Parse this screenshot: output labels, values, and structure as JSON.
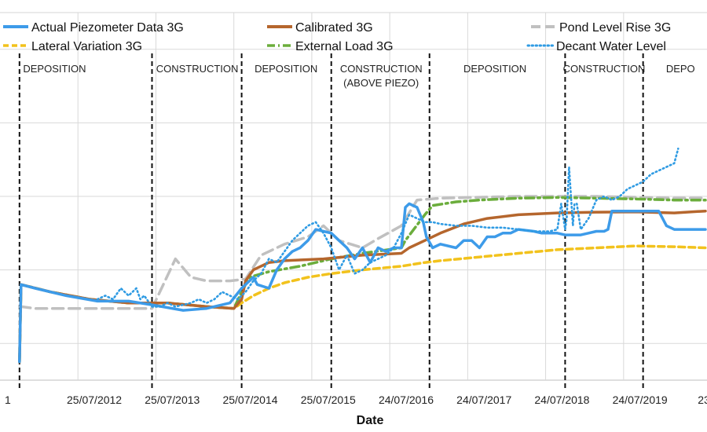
{
  "chart_data": {
    "type": "line",
    "title": "",
    "xlabel": "Date",
    "ylabel": "",
    "x_range": [
      2011.35,
      2020.42
    ],
    "y_range": [
      0,
      100
    ],
    "x_tick_labels": [
      {
        "label": "1",
        "x": 2011.45
      },
      {
        "label": "25/07/2012",
        "x": 2012.56
      },
      {
        "label": "25/07/2013",
        "x": 2013.56
      },
      {
        "label": "25/07/2014",
        "x": 2014.56
      },
      {
        "label": "25/07/2015",
        "x": 2015.56
      },
      {
        "label": "24/07/2016",
        "x": 2016.56
      },
      {
        "label": "24/07/2017",
        "x": 2017.56
      },
      {
        "label": "24/07/2018",
        "x": 2018.56
      },
      {
        "label": "24/07/2019",
        "x": 2019.56
      },
      {
        "label": "23/",
        "x": 2020.4
      }
    ],
    "x_gridlines": [
      2012.35,
      2013.35,
      2014.35,
      2015.35,
      2016.35,
      2017.35,
      2018.35,
      2019.35
    ],
    "y_gridlines": [
      10,
      30,
      50,
      70,
      90
    ],
    "phase_boundaries": [
      2011.6,
      2013.3,
      2014.45,
      2015.6,
      2016.86,
      2018.6,
      2019.6
    ],
    "phases": [
      {
        "label": "DEPOSITION",
        "x": 2012.05
      },
      {
        "label": "CONSTRUCTION",
        "x": 2013.88
      },
      {
        "label": "DEPOSITION",
        "x": 2015.02
      },
      {
        "label": "CONSTRUCTION",
        "sublabel": "(ABOVE PIEZO)",
        "x": 2016.24
      },
      {
        "label": "DEPOSITION",
        "x": 2017.7
      },
      {
        "label": "CONSTRUCTION",
        "x": 2019.1
      },
      {
        "label": "DEPO",
        "x": 2020.08
      }
    ],
    "series": [
      {
        "name": "Actual Piezometer Data 3G",
        "color": "#3d9be9",
        "style": "solid",
        "x": [
          2011.6,
          2011.62,
          2011.8,
          2012.2,
          2012.6,
          2013.0,
          2013.3,
          2013.7,
          2014.0,
          2014.3,
          2014.45,
          2014.6,
          2014.65,
          2014.8,
          2014.9,
          2015.0,
          2015.1,
          2015.2,
          2015.3,
          2015.4,
          2015.5,
          2015.6,
          2015.7,
          2015.8,
          2015.9,
          2016.0,
          2016.1,
          2016.2,
          2016.3,
          2016.4,
          2016.5,
          2016.55,
          2016.6,
          2016.7,
          2016.78,
          2016.82,
          2016.9,
          2017.0,
          2017.2,
          2017.3,
          2017.4,
          2017.5,
          2017.6,
          2017.7,
          2017.8,
          2017.9,
          2018.0,
          2018.2,
          2018.3,
          2018.5,
          2018.6,
          2018.7,
          2018.8,
          2018.9,
          2019.0,
          2019.1,
          2019.15,
          2019.2,
          2019.5,
          2019.75,
          2019.8,
          2019.9,
          2020.0,
          2020.1,
          2020.4
        ],
        "y": [
          5,
          26,
          25,
          23,
          21.5,
          21.5,
          20.5,
          19,
          19.5,
          21,
          25,
          28,
          26,
          25,
          30,
          33,
          35,
          36,
          38,
          41,
          40.5,
          40,
          38,
          36,
          33,
          36,
          32,
          36,
          35,
          36,
          36,
          47,
          48,
          47,
          43,
          39,
          36,
          37,
          36,
          38,
          38,
          36,
          39,
          39,
          40,
          40,
          41,
          40.5,
          40,
          40,
          39.5,
          39.5,
          39.5,
          40,
          40.5,
          40.5,
          41,
          46,
          46,
          46,
          46,
          42,
          41,
          41,
          41
        ]
      },
      {
        "name": "Calibrated 3G",
        "color": "#b5662d",
        "style": "solid",
        "x": [
          2011.6,
          2011.62,
          2012.0,
          2012.5,
          2013.0,
          2013.5,
          2014.0,
          2014.35,
          2014.45,
          2014.5,
          2014.6,
          2014.8,
          2015.0,
          2015.5,
          2016.0,
          2016.5,
          2016.6,
          2016.8,
          2017.0,
          2017.3,
          2017.6,
          2018.0,
          2018.5,
          2019.0,
          2019.5,
          2020.0,
          2020.4
        ],
        "y": [
          5,
          26,
          24,
          22,
          21,
          21,
          20,
          19.5,
          22,
          27,
          30,
          32,
          32.5,
          33,
          34,
          34.5,
          36,
          38,
          40,
          42.5,
          44,
          45,
          45.5,
          45.7,
          45.8,
          45.5,
          46
        ]
      },
      {
        "name": "Pond Level Rise 3G",
        "color": "#c0c0c0",
        "style": "longdash",
        "x": [
          2011.6,
          2011.62,
          2011.8,
          2012.5,
          2013.3,
          2013.6,
          2013.8,
          2014.0,
          2014.3,
          2014.5,
          2014.7,
          2015.0,
          2015.3,
          2015.5,
          2015.7,
          2016.0,
          2016.2,
          2016.5,
          2016.7,
          2017.0,
          2018.0,
          2019.0,
          2020.0,
          2020.4
        ],
        "y": [
          20,
          20,
          19.5,
          19.5,
          19.5,
          33,
          28,
          27,
          27,
          27.5,
          34,
          37,
          39,
          42,
          38,
          36,
          38.5,
          42,
          49,
          49.5,
          50,
          50,
          49.5,
          49.5
        ]
      },
      {
        "name": "Lateral Variation 3G",
        "color": "#f2c21c",
        "style": "dashed",
        "x": [
          2011.6,
          2011.62,
          2012.0,
          2012.5,
          2013.0,
          2013.5,
          2014.0,
          2014.35,
          2014.45,
          2014.6,
          2014.8,
          2015.0,
          2015.3,
          2015.6,
          2016.0,
          2016.5,
          2016.8,
          2017.0,
          2017.5,
          2018.0,
          2018.5,
          2019.0,
          2019.5,
          2020.0,
          2020.4
        ],
        "y": [
          5,
          26,
          24,
          22,
          21,
          21,
          20,
          19.5,
          21,
          23,
          25,
          26.5,
          28,
          29,
          30,
          31,
          32,
          32.5,
          33.5,
          34.5,
          35.5,
          36,
          36.5,
          36.3,
          36
        ]
      },
      {
        "name": "External Load 3G",
        "color": "#6bad3c",
        "style": "dashdot",
        "x": [
          2011.6,
          2011.62,
          2012.0,
          2012.5,
          2013.0,
          2013.5,
          2014.0,
          2014.35,
          2014.45,
          2014.55,
          2014.8,
          2015.2,
          2015.6,
          2016.0,
          2016.5,
          2016.55,
          2016.8,
          2016.9,
          2017.2,
          2017.5,
          2018.0,
          2018.5,
          2019.0,
          2019.5,
          2020.0,
          2020.4
        ],
        "y": [
          5,
          26,
          24,
          22,
          21,
          21,
          20,
          19.5,
          24,
          28,
          29.5,
          31,
          33,
          34.5,
          36,
          38,
          45,
          47.5,
          48.5,
          49,
          49.5,
          49.7,
          49.5,
          49.3,
          49,
          49
        ]
      },
      {
        "name": "Decant Water Level",
        "color": "#2f9be3",
        "style": "dotted",
        "x": [
          2012.6,
          2012.7,
          2012.8,
          2012.9,
          2013.0,
          2013.1,
          2013.15,
          2013.2,
          2013.3,
          2013.4,
          2013.5,
          2013.6,
          2013.7,
          2013.8,
          2013.9,
          2014.0,
          2014.1,
          2014.2,
          2014.3,
          2014.4,
          2014.5,
          2014.6,
          2014.7,
          2014.8,
          2014.9,
          2015.0,
          2015.1,
          2015.2,
          2015.3,
          2015.4,
          2015.5,
          2015.6,
          2015.7,
          2015.8,
          2015.9,
          2016.0,
          2016.1,
          2016.2,
          2016.3,
          2016.4,
          2016.5,
          2016.6,
          2016.7,
          2016.8,
          2016.9,
          2017.0,
          2017.2,
          2017.4,
          2017.6,
          2017.8,
          2018.0,
          2018.2,
          2018.4,
          2018.5,
          2018.55,
          2018.6,
          2018.62,
          2018.65,
          2018.7,
          2018.72,
          2018.75,
          2018.8,
          2018.9,
          2019.0,
          2019.1,
          2019.2,
          2019.3,
          2019.4,
          2019.5,
          2019.6,
          2019.7,
          2019.8,
          2019.9,
          2020.0,
          2020.05
        ],
        "y": [
          22,
          23,
          22,
          25,
          23,
          25,
          22,
          23,
          20,
          20,
          21,
          20,
          20.5,
          21,
          22,
          21,
          22,
          24,
          23,
          22,
          24,
          27,
          29,
          33,
          32,
          35,
          38,
          40,
          42,
          43,
          40,
          36,
          30,
          34,
          29,
          30,
          32,
          33,
          34,
          36,
          40,
          45,
          44,
          43,
          43,
          42.5,
          42,
          42,
          41.5,
          41.5,
          41,
          40.5,
          40.5,
          41,
          48,
          41,
          44,
          58,
          42,
          48,
          48,
          41,
          44,
          49,
          50,
          49,
          50,
          52,
          53,
          54,
          56,
          57,
          58,
          59,
          63
        ]
      }
    ]
  },
  "legend": {
    "items": [
      {
        "label": "Actual Piezometer Data 3G"
      },
      {
        "label": "Calibrated 3G"
      },
      {
        "label": "Pond Level Rise 3G"
      },
      {
        "label": "Lateral Variation 3G"
      },
      {
        "label": "External Load 3G"
      },
      {
        "label": "Decant Water Level"
      }
    ]
  }
}
